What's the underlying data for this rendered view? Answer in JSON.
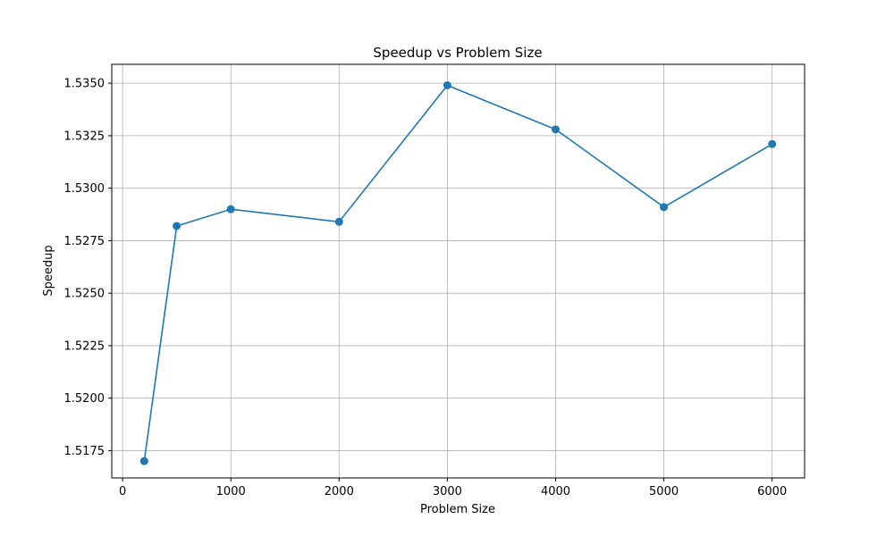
{
  "chart_data": {
    "type": "line",
    "title": "Speedup vs Problem Size",
    "xlabel": "Problem Size",
    "ylabel": "Speedup",
    "xlim": [
      -100,
      6300
    ],
    "ylim": [
      1.5162,
      1.5359
    ],
    "xticks": [
      0,
      1000,
      2000,
      3000,
      4000,
      5000,
      6000
    ],
    "xtick_labels": [
      "0",
      "1000",
      "2000",
      "3000",
      "4000",
      "5000",
      "6000"
    ],
    "yticks": [
      1.5175,
      1.52,
      1.5225,
      1.525,
      1.5275,
      1.53,
      1.5325,
      1.535
    ],
    "ytick_labels": [
      "1.5175",
      "1.5200",
      "1.5225",
      "1.5250",
      "1.5275",
      "1.5300",
      "1.5325",
      "1.5350"
    ],
    "grid": true,
    "series": [
      {
        "color": "#1f77b4",
        "marker": "circle",
        "x": [
          200,
          500,
          1000,
          2000,
          3000,
          4000,
          5000,
          6000
        ],
        "y": [
          1.517,
          1.5282,
          1.529,
          1.5284,
          1.5349,
          1.5328,
          1.5291,
          1.5321
        ]
      }
    ]
  }
}
